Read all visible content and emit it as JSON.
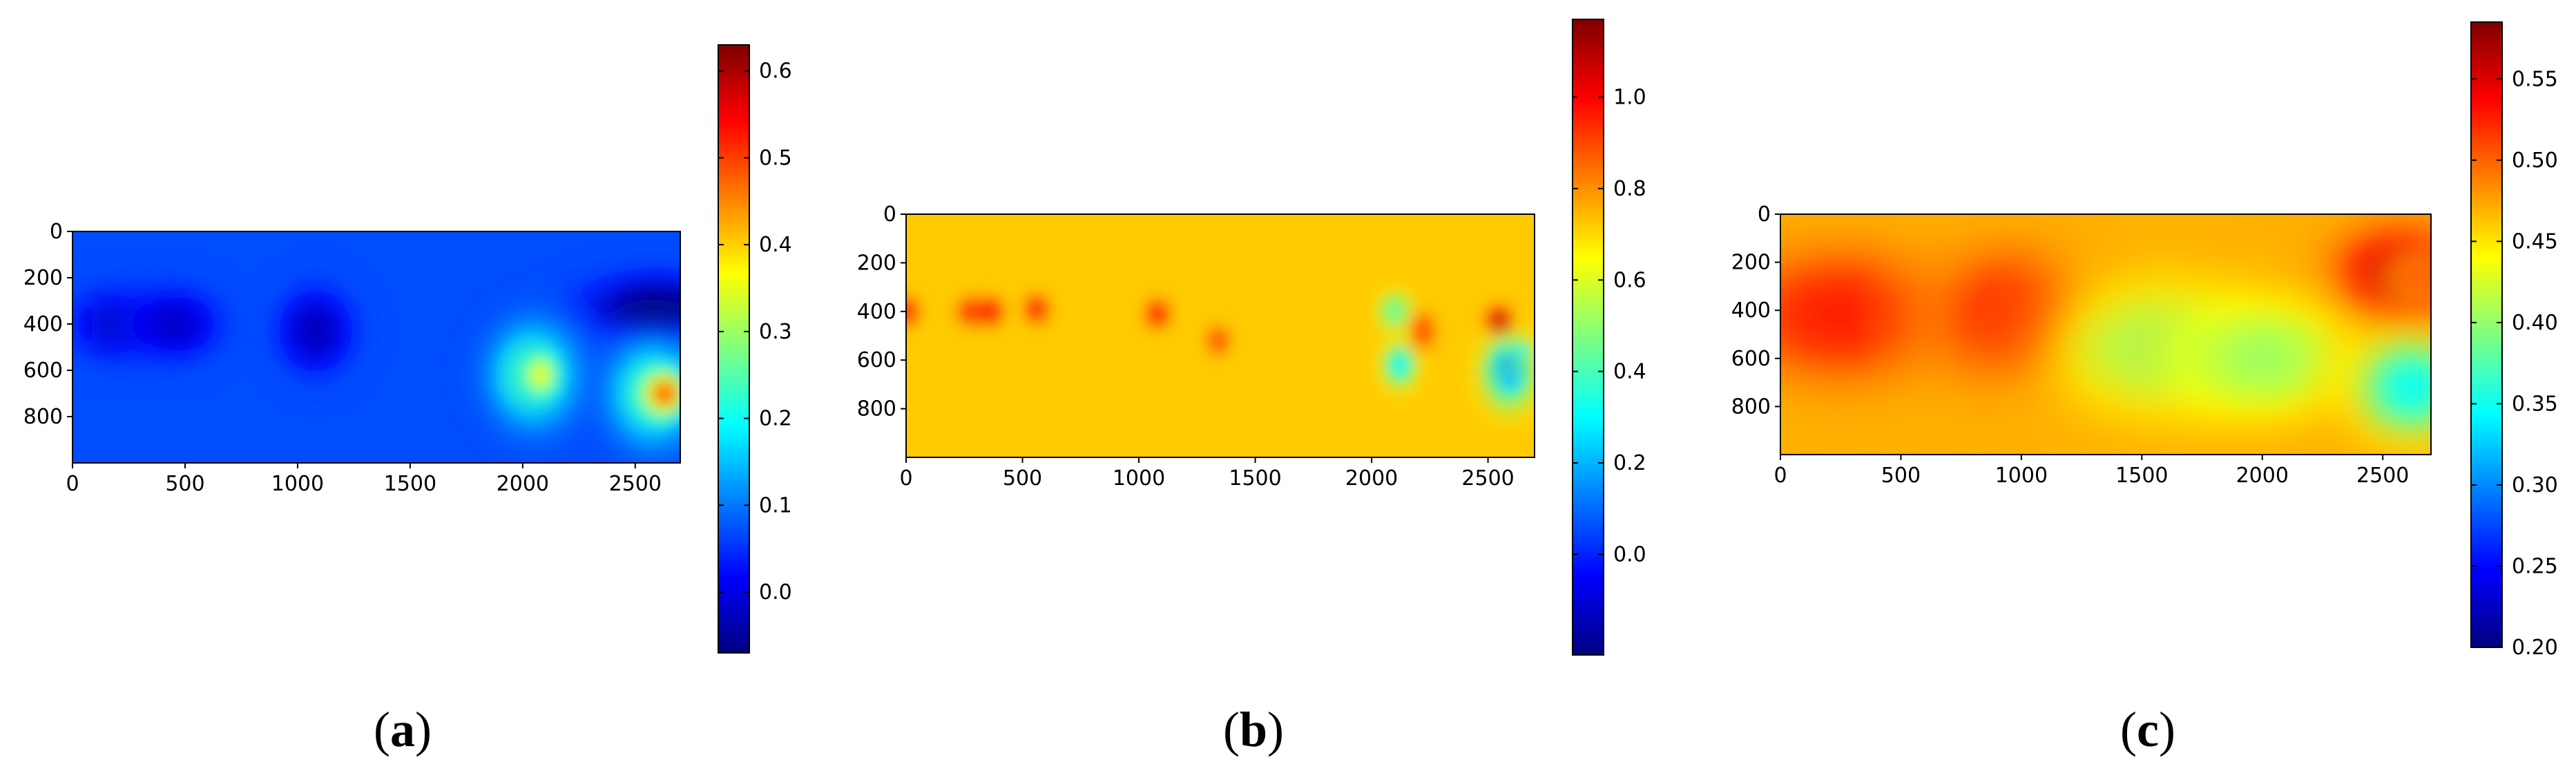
{
  "colors": {
    "jet": [
      "#00007f",
      "#0000ff",
      "#007fff",
      "#00ffff",
      "#7fff7f",
      "#ffff00",
      "#ff7f00",
      "#ff0000",
      "#7f0000"
    ],
    "axis": "#000000",
    "background": "#ffffff"
  },
  "chart_data": [
    {
      "type": "heatmap",
      "caption": {
        "open": "(",
        "letter": "a",
        "close": ")"
      },
      "x_ticks": [
        0,
        500,
        1000,
        1500,
        2000,
        2500
      ],
      "y_ticks": [
        0,
        200,
        400,
        600,
        800
      ],
      "xlim": [
        0,
        2700
      ],
      "ylim": [
        0,
        1000
      ],
      "y_inverted": true,
      "colorbar": {
        "min": -0.07,
        "max": 0.63,
        "ticks": [
          "0.0",
          "0.1",
          "0.2",
          "0.3",
          "0.4",
          "0.5",
          "0.6"
        ],
        "tick_values": [
          0.0,
          0.1,
          0.2,
          0.3,
          0.4,
          0.5,
          0.6
        ]
      },
      "background_value": 0.07,
      "features": [
        {
          "x": 200,
          "y": 400,
          "sx": 160,
          "sy": 120,
          "v": -0.09
        },
        {
          "x": 450,
          "y": 400,
          "sx": 160,
          "sy": 120,
          "v": -0.09
        },
        {
          "x": 1080,
          "y": 430,
          "sx": 130,
          "sy": 140,
          "v": -0.1
        },
        {
          "x": 2600,
          "y": 330,
          "sx": 250,
          "sy": 110,
          "v": -0.14
        },
        {
          "x": 2050,
          "y": 620,
          "sx": 150,
          "sy": 170,
          "v": 0.2
        },
        {
          "x": 2080,
          "y": 620,
          "sx": 65,
          "sy": 80,
          "v": 0.3
        },
        {
          "x": 2580,
          "y": 700,
          "sx": 150,
          "sy": 170,
          "v": 0.2
        },
        {
          "x": 2630,
          "y": 700,
          "sx": 85,
          "sy": 85,
          "v": 0.42
        }
      ]
    },
    {
      "type": "heatmap",
      "caption": {
        "open": "(",
        "letter": "b",
        "close": ")"
      },
      "x_ticks": [
        0,
        500,
        1000,
        1500,
        2000,
        2500
      ],
      "y_ticks": [
        0,
        200,
        400,
        600,
        800
      ],
      "xlim": [
        0,
        2700
      ],
      "ylim": [
        0,
        1000
      ],
      "y_inverted": true,
      "colorbar": {
        "min": -0.22,
        "max": 1.17,
        "ticks": [
          "0.0",
          "0.2",
          "0.4",
          "0.6",
          "0.8",
          "1.0"
        ],
        "tick_values": [
          0.0,
          0.2,
          0.4,
          0.6,
          0.8,
          1.0
        ]
      },
      "background_value": 0.72,
      "features": [
        {
          "x": 0,
          "y": 400,
          "sx": 40,
          "sy": 45,
          "v": 0.28
        },
        {
          "x": 280,
          "y": 400,
          "sx": 45,
          "sy": 45,
          "v": 0.28
        },
        {
          "x": 360,
          "y": 400,
          "sx": 45,
          "sy": 45,
          "v": 0.28
        },
        {
          "x": 560,
          "y": 390,
          "sx": 40,
          "sy": 45,
          "v": 0.27
        },
        {
          "x": 1080,
          "y": 410,
          "sx": 40,
          "sy": 45,
          "v": 0.28
        },
        {
          "x": 1340,
          "y": 520,
          "sx": 38,
          "sy": 45,
          "v": 0.2
        },
        {
          "x": 2100,
          "y": 400,
          "sx": 50,
          "sy": 55,
          "v": -0.42
        },
        {
          "x": 2100,
          "y": 400,
          "sx": 18,
          "sy": 20,
          "v": -0.3
        },
        {
          "x": 2120,
          "y": 620,
          "sx": 55,
          "sy": 70,
          "v": -0.45
        },
        {
          "x": 2220,
          "y": 480,
          "sx": 40,
          "sy": 60,
          "v": 0.2
        },
        {
          "x": 2550,
          "y": 440,
          "sx": 45,
          "sy": 45,
          "v": 0.42
        },
        {
          "x": 2590,
          "y": 650,
          "sx": 85,
          "sy": 110,
          "v": -0.6
        },
        {
          "x": 2600,
          "y": 690,
          "sx": 40,
          "sy": 40,
          "v": -0.6
        },
        {
          "x": 2650,
          "y": 560,
          "sx": 30,
          "sy": 30,
          "v": -0.5
        }
      ]
    },
    {
      "type": "heatmap",
      "caption": {
        "open": "(",
        "letter": "c",
        "close": ")"
      },
      "x_ticks": [
        0,
        500,
        1000,
        1500,
        2000,
        2500
      ],
      "y_ticks": [
        0,
        200,
        400,
        600,
        800
      ],
      "xlim": [
        0,
        2700
      ],
      "ylim": [
        0,
        1000
      ],
      "y_inverted": true,
      "colorbar": {
        "min": 0.2,
        "max": 0.585,
        "ticks": [
          "0.20",
          "0.25",
          "0.30",
          "0.35",
          "0.40",
          "0.45",
          "0.50",
          "0.55"
        ],
        "tick_values": [
          0.2,
          0.25,
          0.3,
          0.35,
          0.4,
          0.45,
          0.5,
          0.55
        ]
      },
      "background_value": 0.47,
      "features": [
        {
          "x": 250,
          "y": 420,
          "sx": 380,
          "sy": 230,
          "v": 0.055
        },
        {
          "x": 950,
          "y": 420,
          "sx": 260,
          "sy": 230,
          "v": 0.05
        },
        {
          "x": 2580,
          "y": 260,
          "sx": 230,
          "sy": 170,
          "v": 0.09
        },
        {
          "x": 2650,
          "y": 260,
          "sx": 110,
          "sy": 90,
          "v": 0.03
        },
        {
          "x": 1600,
          "y": 560,
          "sx": 340,
          "sy": 220,
          "v": -0.07
        },
        {
          "x": 2000,
          "y": 600,
          "sx": 300,
          "sy": 200,
          "v": -0.065
        },
        {
          "x": 2620,
          "y": 720,
          "sx": 190,
          "sy": 170,
          "v": -0.12
        }
      ]
    }
  ]
}
